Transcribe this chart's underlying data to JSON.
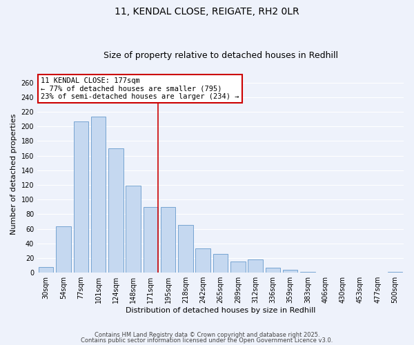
{
  "title": "11, KENDAL CLOSE, REIGATE, RH2 0LR",
  "subtitle": "Size of property relative to detached houses in Redhill",
  "xlabel": "Distribution of detached houses by size in Redhill",
  "ylabel": "Number of detached properties",
  "bar_labels": [
    "30sqm",
    "54sqm",
    "77sqm",
    "101sqm",
    "124sqm",
    "148sqm",
    "171sqm",
    "195sqm",
    "218sqm",
    "242sqm",
    "265sqm",
    "289sqm",
    "312sqm",
    "336sqm",
    "359sqm",
    "383sqm",
    "406sqm",
    "430sqm",
    "453sqm",
    "477sqm",
    "500sqm"
  ],
  "bar_values": [
    8,
    63,
    207,
    213,
    170,
    119,
    90,
    90,
    65,
    33,
    26,
    15,
    18,
    7,
    4,
    1,
    0,
    0,
    0,
    0,
    1
  ],
  "bar_color": "#c5d8f0",
  "bar_edge_color": "#6699cc",
  "highlight_index": 6,
  "annotation_title": "11 KENDAL CLOSE: 177sqm",
  "annotation_line1": "← 77% of detached houses are smaller (795)",
  "annotation_line2": "23% of semi-detached houses are larger (234) →",
  "annotation_box_color": "#ffffff",
  "annotation_box_edge": "#cc0000",
  "vline_color": "#cc0000",
  "ylim": [
    0,
    270
  ],
  "yticks": [
    0,
    20,
    40,
    60,
    80,
    100,
    120,
    140,
    160,
    180,
    200,
    220,
    240,
    260
  ],
  "footer1": "Contains HM Land Registry data © Crown copyright and database right 2025.",
  "footer2": "Contains public sector information licensed under the Open Government Licence v3.0.",
  "bg_color": "#eef2fb",
  "grid_color": "#ffffff",
  "title_fontsize": 10,
  "subtitle_fontsize": 9,
  "label_fontsize": 8,
  "tick_fontsize": 7,
  "footer_fontsize": 6
}
